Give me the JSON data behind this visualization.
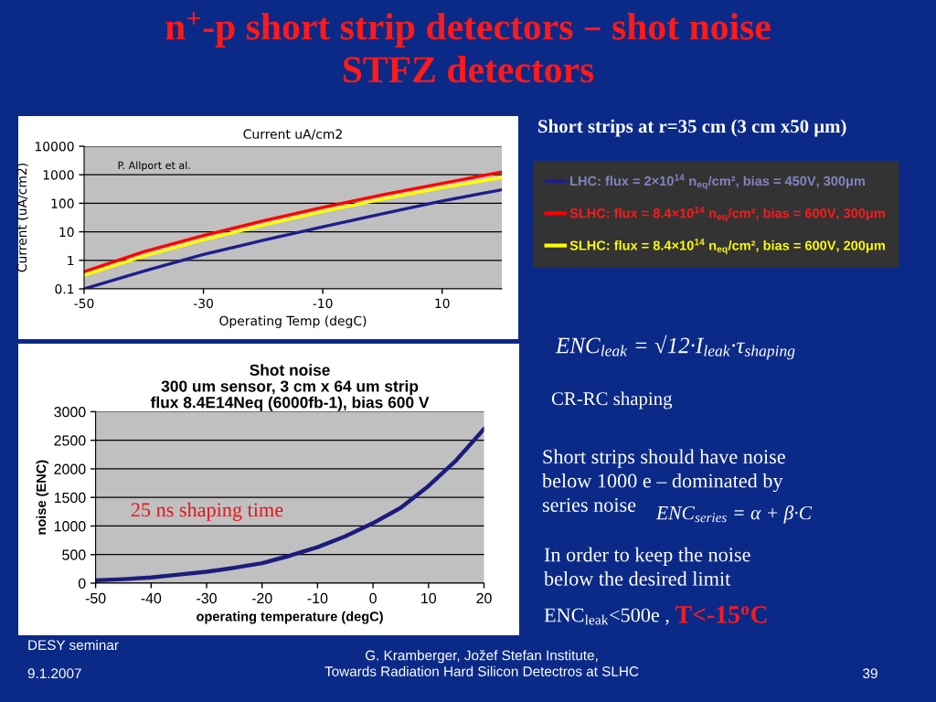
{
  "chart_data": [
    {
      "type": "other",
      "title": "n$^{+}$-p short strip detectors – shot noise\nSTFZ detectors",
      "annotations": [
        "Short strips at r=35 cm (3 cm x50 μm)",
        "ENC$_{leak}$ = √12·I$_{leak}$·τ$_{shaping}$",
        "CR-RC shaping",
        "Short strips should have noise\nbelow 1000 e – dominated by\nseries noise",
        "ENC$_{series}$ = α + β·C",
        "In order to keep the noise\nbelow the desired limit",
        "ENC$_{leak}$<500e ,",
        "T<-15$^{o}$C",
        "DESY seminar",
        "9.1.2007",
        "G. Kramberger, Jožef Stefan Institute,\nTowards Radiation Hard Silicon Detectros at SLHC",
        "39"
      ]
    },
    {
      "type": "line",
      "title": "Current uA/cm2",
      "xlabel": "Operating Temp (degC)",
      "ylabel": "Current (uA/cm2)",
      "annotations": [
        "P. Allport et al."
      ],
      "x": [
        -50,
        -40,
        -30,
        -20,
        -10,
        0,
        10,
        20
      ],
      "series": [
        {
          "name": "LHC: flux = 2×10$^{14}$ n$_{eq}$/cm², bias = 450V, 300μm",
          "color": "#1e1e8c",
          "values": [
            0.1,
            0.42,
            1.6,
            5,
            15,
            43,
            120,
            300
          ]
        },
        {
          "name": "SLHC: flux = 8.4×10$^{14}$ n$_{eq}$/cm², bias = 600V, 300μm",
          "color": "#ff0000",
          "values": [
            0.4,
            2,
            7.4,
            24,
            72,
            200,
            500,
            1250
          ]
        },
        {
          "name": "SLHC: flux = 8.4×10$^{14}$ n$_{eq}$/cm², bias = 600V, 200μm",
          "color": "#ffff00",
          "values": [
            0.3,
            1.4,
            5.2,
            17,
            52,
            140,
            350,
            800
          ]
        }
      ],
      "xlim": [
        -50,
        20
      ],
      "ylim": [
        0.1,
        10000
      ],
      "xticks": [
        -50,
        -30,
        -10,
        10
      ],
      "yticks": [
        0.1,
        1,
        10,
        100,
        1000,
        10000
      ],
      "log": "y",
      "grid": "y",
      "legend": "right"
    },
    {
      "type": "line",
      "title": "Shot noise\n300 um sensor, 3 cm x 64 um strip\nflux 8.4E14Neq (6000fb-1), bias 600 V",
      "xlabel": "operating temperature (degC)",
      "ylabel": "noise (ENC)",
      "annotations": [
        "25 ns shaping time"
      ],
      "x": [
        -50,
        -45,
        -40,
        -35,
        -30,
        -25,
        -20,
        -15,
        -10,
        -5,
        0,
        5,
        10,
        15,
        20
      ],
      "series": [
        {
          "color": "#1c1c7c",
          "values": [
            50,
            70,
            100,
            150,
            200,
            270,
            350,
            480,
            630,
            820,
            1050,
            1320,
            1700,
            2150,
            2700
          ]
        }
      ],
      "xlim": [
        -50,
        20
      ],
      "ylim": [
        0,
        3000
      ],
      "xticks": [
        -50,
        -40,
        -30,
        -20,
        -10,
        0,
        10,
        20
      ],
      "yticks": [
        0,
        500,
        1000,
        1500,
        2000,
        2500,
        3000
      ],
      "grid": "y"
    }
  ]
}
